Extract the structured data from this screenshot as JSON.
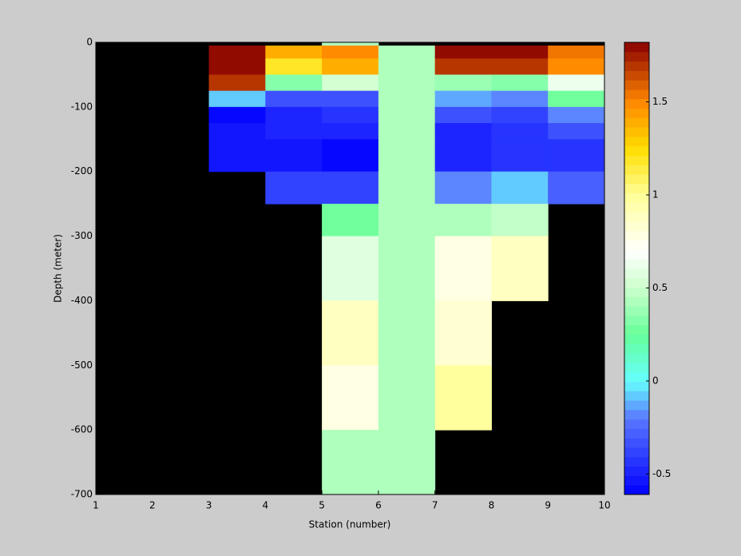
{
  "chart_data": {
    "type": "heatmap",
    "xlabel": "Station (number)",
    "ylabel": "Depth (meter)",
    "xlim": [
      1,
      10
    ],
    "ylim": [
      -700,
      0
    ],
    "xticks": [
      1,
      2,
      3,
      4,
      5,
      6,
      7,
      8,
      9,
      10
    ],
    "yticks": [
      0,
      -100,
      -200,
      -300,
      -400,
      -500,
      -600,
      -700
    ],
    "x_edges": [
      1,
      2,
      3,
      4,
      5,
      6,
      7,
      8,
      9,
      10
    ],
    "y_edges": [
      0,
      -5,
      -25,
      -50,
      -75,
      -100,
      -125,
      -150,
      -200,
      -250,
      -300,
      -400,
      -500,
      -600,
      -700
    ],
    "z": [
      [
        null,
        null,
        null,
        null,
        0.42,
        null,
        null,
        null,
        null
      ],
      [
        null,
        null,
        1.8,
        1.4,
        1.5,
        0.42,
        1.8,
        1.8,
        1.55
      ],
      [
        null,
        null,
        1.8,
        1.2,
        1.4,
        0.42,
        1.7,
        1.7,
        1.5
      ],
      [
        null,
        null,
        1.7,
        0.35,
        0.55,
        0.42,
        0.4,
        0.35,
        0.65
      ],
      [
        null,
        null,
        -0.1,
        -0.35,
        -0.35,
        0.42,
        -0.15,
        -0.2,
        0.3
      ],
      [
        null,
        null,
        -0.6,
        -0.5,
        -0.45,
        0.42,
        -0.35,
        -0.4,
        -0.2
      ],
      [
        null,
        null,
        -0.55,
        -0.5,
        -0.5,
        0.42,
        -0.5,
        -0.45,
        -0.35
      ],
      [
        null,
        null,
        -0.55,
        -0.55,
        -0.6,
        0.42,
        -0.5,
        -0.45,
        -0.45
      ],
      [
        null,
        null,
        null,
        -0.4,
        -0.4,
        0.42,
        -0.2,
        -0.1,
        -0.3
      ],
      [
        null,
        null,
        null,
        null,
        0.3,
        0.42,
        0.45,
        0.5,
        null
      ],
      [
        null,
        null,
        null,
        null,
        0.6,
        0.42,
        0.8,
        0.9,
        null
      ],
      [
        null,
        null,
        null,
        null,
        0.9,
        0.42,
        0.85,
        null,
        null
      ],
      [
        null,
        null,
        null,
        null,
        0.8,
        0.42,
        1.0,
        null,
        null
      ],
      [
        null,
        null,
        null,
        null,
        0.45,
        0.42,
        null,
        null,
        null
      ]
    ],
    "missing_color": "#000000",
    "clim": [
      -0.61,
      1.82
    ],
    "cticks": [
      -0.5,
      0,
      0.5,
      1,
      1.5
    ],
    "colormap": [
      [
        -0.61,
        "#0000ff"
      ],
      [
        -0.2,
        "#5a78ff"
      ],
      [
        0,
        "#66ffff"
      ],
      [
        0.25,
        "#66ff99"
      ],
      [
        0.5,
        "#ccffcc"
      ],
      [
        0.7,
        "#ffffff"
      ],
      [
        1.0,
        "#ffff99"
      ],
      [
        1.25,
        "#ffdd00"
      ],
      [
        1.5,
        "#ff8800"
      ],
      [
        1.82,
        "#880000"
      ]
    ],
    "colorbar_levels": 48
  }
}
